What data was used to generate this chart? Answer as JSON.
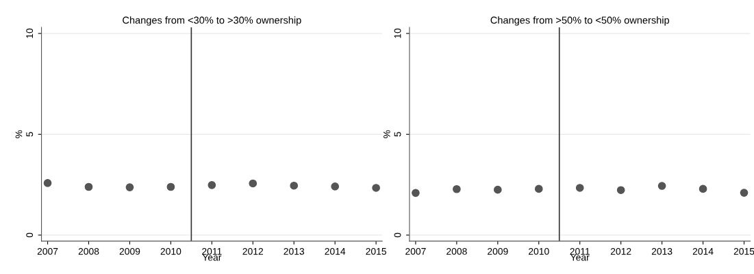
{
  "chart_data": [
    {
      "type": "scatter",
      "title": "Changes from <30% to >30% ownership",
      "xlabel": "Year",
      "ylabel": "%",
      "x": [
        2007,
        2008,
        2009,
        2010,
        2011,
        2012,
        2013,
        2014,
        2015
      ],
      "series": [
        {
          "color": "#555555",
          "values": [
            2.58,
            2.39,
            2.37,
            2.39,
            2.48,
            2.56,
            2.45,
            2.41,
            2.34
          ]
        }
      ],
      "xlim": [
        2006.85,
        2015.15
      ],
      "xticks": [
        2007,
        2008,
        2009,
        2010,
        2011,
        2012,
        2013,
        2014,
        2015
      ],
      "ylim": [
        -0.3,
        10.3
      ],
      "yticks": [
        0,
        5,
        10
      ],
      "grid": "y",
      "marker": "circle",
      "ref_lines": [
        {
          "axis": "x",
          "value": 2010.5,
          "color": "#333333"
        }
      ]
    },
    {
      "type": "scatter",
      "title": "Changes from >50% to <50% ownership",
      "xlabel": "Year",
      "ylabel": "%",
      "x": [
        2007,
        2008,
        2009,
        2010,
        2011,
        2012,
        2013,
        2014,
        2015
      ],
      "series": [
        {
          "color": "#555555",
          "values": [
            2.09,
            2.28,
            2.25,
            2.29,
            2.34,
            2.23,
            2.44,
            2.29,
            2.1
          ]
        }
      ],
      "xlim": [
        2006.85,
        2015.15
      ],
      "xticks": [
        2007,
        2008,
        2009,
        2010,
        2011,
        2012,
        2013,
        2014,
        2015
      ],
      "ylim": [
        -0.3,
        10.3
      ],
      "yticks": [
        0,
        5,
        10
      ],
      "grid": "y",
      "marker": "circle",
      "ref_lines": [
        {
          "axis": "x",
          "value": 2010.5,
          "color": "#333333"
        }
      ]
    }
  ]
}
